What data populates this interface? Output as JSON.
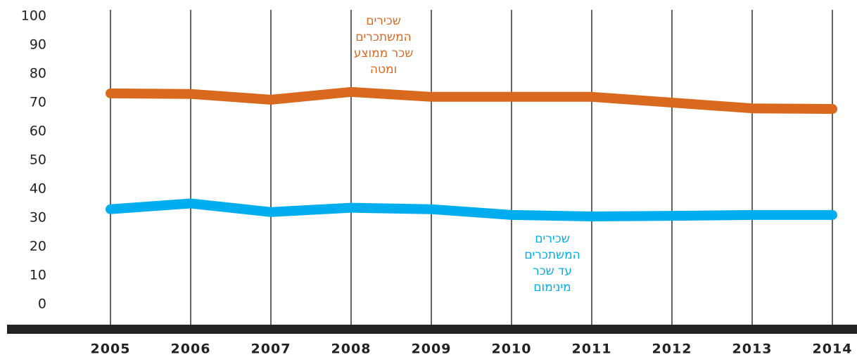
{
  "chart_data": {
    "type": "line",
    "x": [
      2005,
      2006,
      2007,
      2008,
      2009,
      2010,
      2011,
      2012,
      2013,
      2014
    ],
    "xlim": [
      2005,
      2014
    ],
    "xticks": [
      2005,
      2006,
      2007,
      2008,
      2009,
      2010,
      2011,
      2012,
      2013,
      2014
    ],
    "ylim": [
      0,
      100
    ],
    "yticks": [
      0,
      10,
      20,
      30,
      40,
      50,
      60,
      70,
      80,
      90,
      100
    ],
    "series": [
      {
        "label_lines": [
          "שכירים",
          "המשתכרים",
          "שכר ממוצע",
          "ומטה"
        ],
        "color": "#d9691e",
        "values": [
          73.2,
          73,
          71,
          73.7,
          72,
          72,
          72,
          70,
          68,
          67.8
        ]
      },
      {
        "label_lines": [
          "שכירים",
          "המשתכרים",
          "עד שכר",
          "מינימום"
        ],
        "color": "#00aeef",
        "values": [
          33,
          35,
          32,
          33.5,
          33,
          31,
          30.5,
          30.7,
          31,
          31
        ]
      }
    ]
  }
}
